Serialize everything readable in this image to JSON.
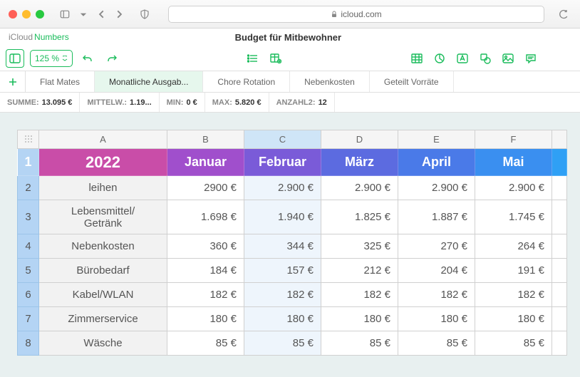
{
  "browser": {
    "url_host": "icloud.com"
  },
  "app": {
    "brand": "iCloud",
    "name": "Numbers",
    "doc_title": "Budget für Mitbewohner",
    "zoom": "125 %"
  },
  "sheets": [
    {
      "label": "Flat Mates",
      "active": false
    },
    {
      "label": "Monatliche Ausgab...",
      "active": true
    },
    {
      "label": "Chore Rotation",
      "active": false
    },
    {
      "label": "Nebenkosten",
      "active": false
    },
    {
      "label": "Geteilt Vorräte",
      "active": false
    }
  ],
  "stats": {
    "sum_label": "SUMME:",
    "sum_val": "13.095 €",
    "avg_label": "MITTELW.:",
    "avg_val": "1.19...",
    "min_label": "MIN:",
    "min_val": "0 €",
    "max_label": "MAX:",
    "max_val": "5.820 €",
    "count_label": "ANZAHL2:",
    "count_val": "12"
  },
  "spreadsheet": {
    "col_letters": [
      "A",
      "B",
      "C",
      "D",
      "E",
      "F"
    ],
    "selected_col_index": 2,
    "header_colors": {
      "year": "#c94da8",
      "jan": "#a04fcc",
      "feb": "#7a5bd8",
      "mar": "#5c6be0",
      "apr": "#4a7ae8",
      "mai": "#3a8ff0",
      "jun": "#2fa0f5"
    },
    "header_row": [
      "2022",
      "Januar",
      "Februar",
      "März",
      "April",
      "Mai"
    ],
    "rows": [
      {
        "n": 2,
        "label": "leihen",
        "vals": [
          "2900 €",
          "2.900 €",
          "2.900 €",
          "2.900 €",
          "2.900 €"
        ],
        "tall": false
      },
      {
        "n": 3,
        "label": "Lebensmittel/Getränk",
        "vals": [
          "1.698 €",
          "1.940 €",
          "1.825 €",
          "1.887 €",
          "1.745 €"
        ],
        "tall": true
      },
      {
        "n": 4,
        "label": "Nebenkosten",
        "vals": [
          "360 €",
          "344 €",
          "325 €",
          "270 €",
          "264 €"
        ],
        "tall": false
      },
      {
        "n": 5,
        "label": "Bürobedarf",
        "vals": [
          "184 €",
          "157 €",
          "212 €",
          "204 €",
          "191 €"
        ],
        "tall": false
      },
      {
        "n": 6,
        "label": "Kabel/WLAN",
        "vals": [
          "182 €",
          "182 €",
          "182 €",
          "182 €",
          "182 €"
        ],
        "tall": false
      },
      {
        "n": 7,
        "label": "Zimmerservice",
        "vals": [
          "180 €",
          "180 €",
          "180 €",
          "180 €",
          "180 €"
        ],
        "tall": false
      },
      {
        "n": 8,
        "label": "Wäsche",
        "vals": [
          "85 €",
          "85 €",
          "85 €",
          "85 €",
          "85 €"
        ],
        "tall": false
      }
    ]
  }
}
